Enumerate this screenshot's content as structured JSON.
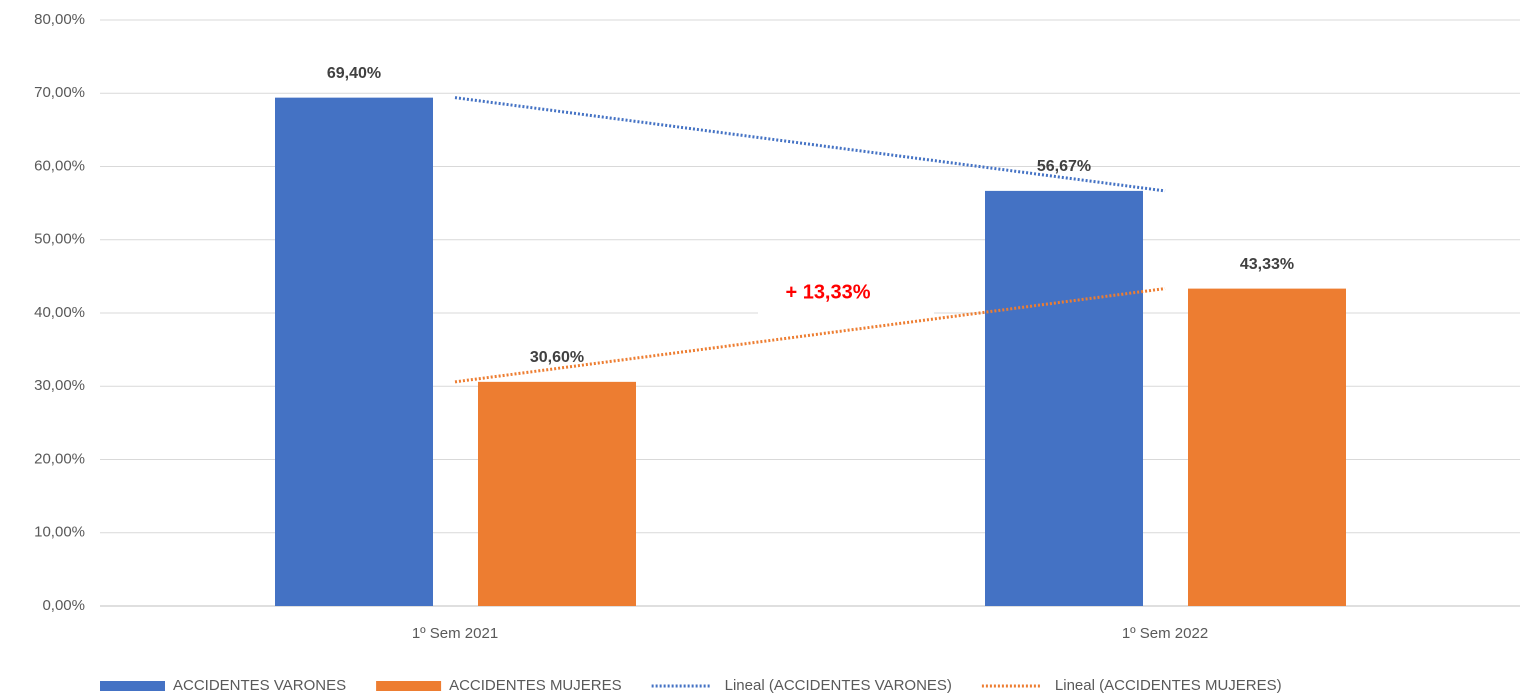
{
  "chart_data": {
    "type": "bar",
    "categories": [
      "1º Sem 2021",
      "1º Sem 2022"
    ],
    "series": [
      {
        "name": "ACCIDENTES VARONES",
        "color": "#4472c4",
        "values": [
          69.4,
          56.67
        ],
        "value_labels": [
          "69,40%",
          "56,67%"
        ]
      },
      {
        "name": "ACCIDENTES MUJERES",
        "color": "#ed7d31",
        "values": [
          30.6,
          43.33
        ],
        "value_labels": [
          "30,60%",
          "43,33%"
        ]
      }
    ],
    "trendlines": [
      {
        "name": "Lineal (ACCIDENTES VARONES)",
        "color": "#4472c4",
        "series": 0
      },
      {
        "name": "Lineal (ACCIDENTES MUJERES)",
        "color": "#ed7d31",
        "series": 1
      }
    ],
    "annotation": "+ 13,33%",
    "ylim": [
      0,
      80
    ],
    "yticks": [
      {
        "value": 0,
        "label": "0,00%"
      },
      {
        "value": 10,
        "label": "10,00%"
      },
      {
        "value": 20,
        "label": "20,00%"
      },
      {
        "value": 30,
        "label": "30,00%"
      },
      {
        "value": 40,
        "label": "40,00%"
      },
      {
        "value": 50,
        "label": "50,00%"
      },
      {
        "value": 60,
        "label": "60,00%"
      },
      {
        "value": 70,
        "label": "70,00%"
      },
      {
        "value": 80,
        "label": "80,00%"
      }
    ],
    "grid": true,
    "legend": "bottom"
  }
}
